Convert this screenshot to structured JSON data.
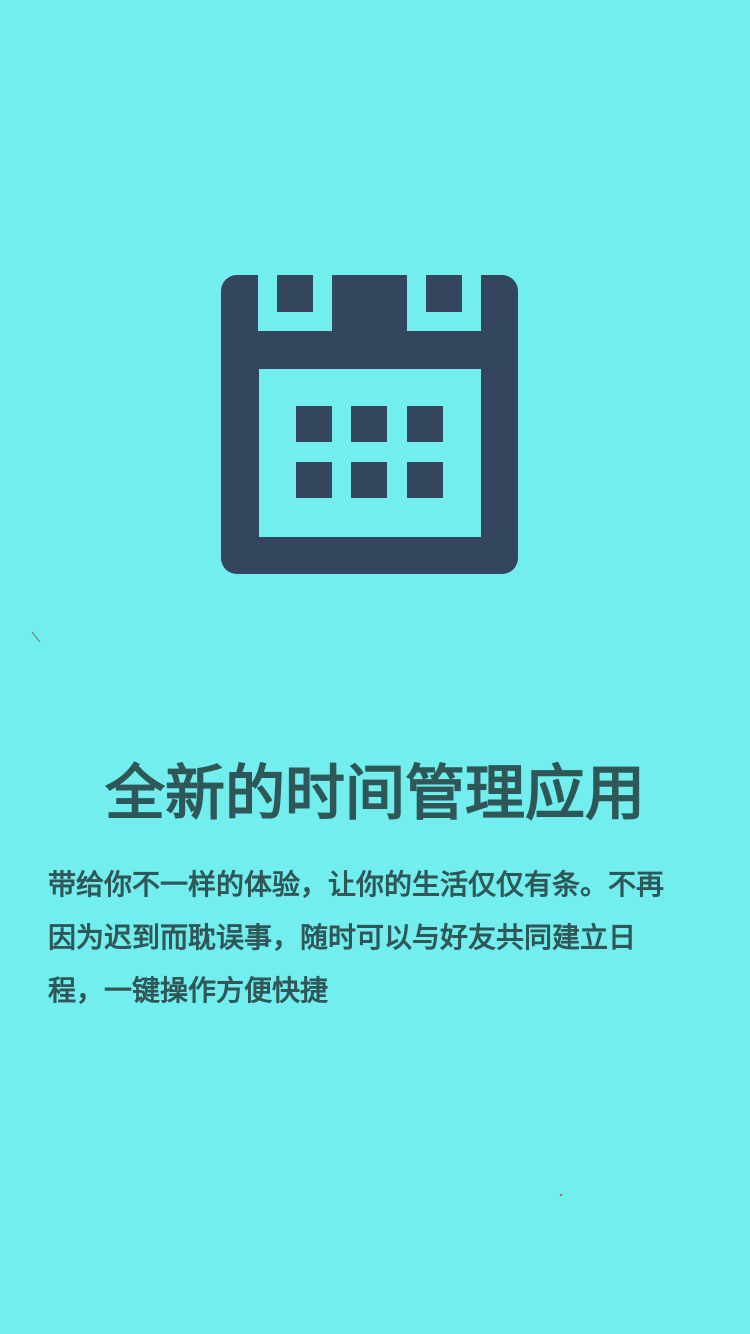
{
  "app": {
    "background_color": "#72eeee",
    "text_color": "#2f5757",
    "icon_color": "#34465e"
  },
  "hero": {
    "icon": "calendar-icon"
  },
  "onboarding": {
    "title": "全新的时间管理应用",
    "description": "带给你不一样的体验，让你的生活仅仅有条。不再因为迟到而耽误事，随时可以与好友共同建立日程，一键操作方便快捷"
  }
}
